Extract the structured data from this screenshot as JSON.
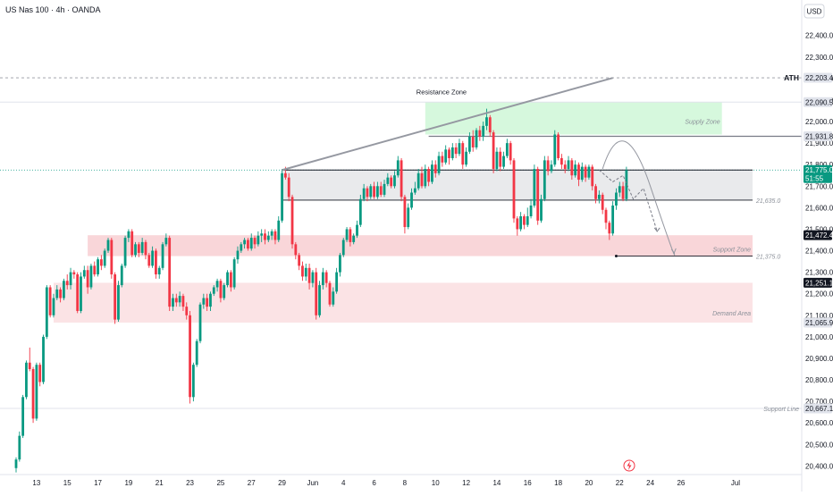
{
  "header": {
    "title": "US Nas 100 · 4h · OANDA",
    "currency": "USD"
  },
  "annotations": {
    "resistance_zone": "Resistance Zone",
    "supply_zone": "Supply Zone",
    "support_zone": "Support Zone",
    "demand_area": "Demand Area",
    "support_line": "Support Line",
    "ath": "ATH",
    "level_21635": "21,635.0",
    "level_21375": "21,375.0"
  },
  "colors": {
    "up": "#089981",
    "down": "#f23645",
    "supply": "#c8f5d2",
    "support_zone": "#f9d6d9",
    "demand": "#fbe3e5",
    "consolidation": "#e9eaec",
    "current_price": "#089981"
  },
  "chart_data": {
    "type": "candlestick",
    "title": "US Nas 100 · 4h · OANDA",
    "ylabel": "USD",
    "ylim": [
      20360,
      22540
    ],
    "y_ticks": [
      "22,400.0",
      "22,300.0",
      "22,200.0",
      "22,100.0",
      "22,000.0",
      "21,900.0",
      "21,800.0",
      "21,700.0",
      "21,600.0",
      "21,500.0",
      "21,400.0",
      "21,300.0",
      "21,200.0",
      "21,100.0",
      "21,000.0",
      "20,900.0",
      "20,800.0",
      "20,700.0",
      "20,600.0",
      "20,500.0",
      "20,400.0"
    ],
    "y_tick_values": [
      22400,
      22300,
      22200,
      22100,
      22000,
      21900,
      21800,
      21700,
      21600,
      21500,
      21400,
      21300,
      21200,
      21100,
      21000,
      20900,
      20800,
      20700,
      20600,
      20500,
      20400
    ],
    "x_ticks": [
      "13",
      "15",
      "17",
      "19",
      "21",
      "23",
      "25",
      "27",
      "29",
      "Jun",
      "4",
      "6",
      "8",
      "10",
      "12",
      "14",
      "16",
      "18",
      "20",
      "22",
      "24",
      "26",
      "Jul"
    ],
    "x_tick_index": [
      6,
      15,
      24,
      33,
      42,
      51,
      60,
      69,
      78,
      87,
      96,
      105,
      114,
      123,
      132,
      141,
      150,
      159,
      168,
      177,
      186,
      195,
      211
    ],
    "price_tags": [
      {
        "label": "22,203.4",
        "value": 22203.4,
        "style": "light"
      },
      {
        "label": "22,090.5",
        "value": 22090.5,
        "style": "light"
      },
      {
        "label": "21,931.8",
        "value": 21931.8,
        "style": "light"
      },
      {
        "label": "21,775.0",
        "value": 21775.0,
        "style": "current",
        "sub": "51:55"
      },
      {
        "label": "21,472.4",
        "value": 21472.4,
        "style": "dark"
      },
      {
        "label": "21,251.1",
        "value": 21251.1,
        "style": "dark"
      },
      {
        "label": "21,065.9",
        "value": 21065.9,
        "style": "light"
      },
      {
        "label": "20,667.1",
        "value": 20667.1,
        "style": "light"
      }
    ],
    "zones": {
      "supply": [
        21940,
        22090
      ],
      "consolidation": [
        21635,
        21775
      ],
      "support": [
        21375,
        21472
      ],
      "demand": [
        21066,
        21251
      ]
    },
    "levels": {
      "ath": 22203.4,
      "resistance_top": 22090.5,
      "high_931": 21931.8,
      "current": 21775.0,
      "l21635": 21635.0,
      "l21375": 21375.0,
      "support_line": 20667.1
    },
    "trendline": {
      "from": [
        78,
        21775
      ],
      "to": [
        175,
        22203
      ]
    },
    "projection": [
      [
        171,
        21775
      ],
      [
        175,
        21720
      ],
      [
        178,
        21750
      ],
      [
        181,
        21640
      ],
      [
        184,
        21690
      ],
      [
        188,
        21490
      ]
    ],
    "projection_arc": [
      [
        172,
        21780
      ],
      [
        178,
        21930
      ],
      [
        186,
        21700
      ],
      [
        193,
        21390
      ]
    ],
    "candles": [
      [
        20390,
        20430,
        20370,
        20440
      ],
      [
        20430,
        20540,
        20420,
        20560
      ],
      [
        20540,
        20720,
        20530,
        20730
      ],
      [
        20720,
        20880,
        20710,
        20890
      ],
      [
        20880,
        20850,
        20840,
        20950
      ],
      [
        20850,
        20620,
        20600,
        20860
      ],
      [
        20620,
        20870,
        20610,
        20880
      ],
      [
        20870,
        20790,
        20770,
        20880
      ],
      [
        20790,
        21000,
        20780,
        21010
      ],
      [
        21000,
        21230,
        20990,
        21240
      ],
      [
        21230,
        21100,
        21090,
        21240
      ],
      [
        21100,
        21180,
        21090,
        21200
      ],
      [
        21180,
        21220,
        21170,
        21240
      ],
      [
        21220,
        21180,
        21160,
        21230
      ],
      [
        21180,
        21260,
        21170,
        21270
      ],
      [
        21260,
        21240,
        21220,
        21290
      ],
      [
        21240,
        21300,
        21220,
        21320
      ],
      [
        21300,
        21290,
        21270,
        21310
      ],
      [
        21290,
        21120,
        21110,
        21300
      ],
      [
        21120,
        21280,
        21110,
        21300
      ],
      [
        21280,
        21310,
        21270,
        21330
      ],
      [
        21310,
        21230,
        21200,
        21330
      ],
      [
        21230,
        21330,
        21220,
        21340
      ],
      [
        21330,
        21290,
        21280,
        21350
      ],
      [
        21290,
        21360,
        21280,
        21370
      ],
      [
        21360,
        21330,
        21310,
        21380
      ],
      [
        21330,
        21400,
        21320,
        21410
      ],
      [
        21400,
        21450,
        21390,
        21460
      ],
      [
        21450,
        21290,
        21270,
        21460
      ],
      [
        21290,
        21080,
        21060,
        21300
      ],
      [
        21080,
        21240,
        21070,
        21260
      ],
      [
        21240,
        21330,
        21230,
        21340
      ],
      [
        21330,
        21460,
        21320,
        21470
      ],
      [
        21460,
        21490,
        21440,
        21500
      ],
      [
        21490,
        21380,
        21370,
        21500
      ],
      [
        21380,
        21430,
        21370,
        21440
      ],
      [
        21430,
        21390,
        21370,
        21440
      ],
      [
        21390,
        21440,
        21380,
        21460
      ],
      [
        21440,
        21380,
        21360,
        21450
      ],
      [
        21380,
        21330,
        21320,
        21390
      ],
      [
        21330,
        21400,
        21320,
        21420
      ],
      [
        21400,
        21290,
        21270,
        21410
      ],
      [
        21290,
        21320,
        21270,
        21330
      ],
      [
        21320,
        21430,
        21310,
        21440
      ],
      [
        21430,
        21460,
        21420,
        21480
      ],
      [
        21460,
        21140,
        21120,
        21470
      ],
      [
        21140,
        21180,
        21120,
        21200
      ],
      [
        21180,
        21160,
        21140,
        21200
      ],
      [
        21160,
        21190,
        21140,
        21210
      ],
      [
        21190,
        21140,
        21120,
        21200
      ],
      [
        21140,
        21100,
        21080,
        21160
      ],
      [
        21100,
        20720,
        20690,
        21120
      ],
      [
        20720,
        20870,
        20700,
        20880
      ],
      [
        20870,
        20980,
        20860,
        20990
      ],
      [
        20980,
        21150,
        20970,
        21160
      ],
      [
        21150,
        21180,
        21130,
        21200
      ],
      [
        21180,
        21140,
        21120,
        21200
      ],
      [
        21140,
        21200,
        21120,
        21210
      ],
      [
        21200,
        21230,
        21190,
        21240
      ],
      [
        21230,
        21260,
        21210,
        21270
      ],
      [
        21260,
        21180,
        21160,
        21270
      ],
      [
        21180,
        21240,
        21170,
        21250
      ],
      [
        21240,
        21300,
        21230,
        21310
      ],
      [
        21300,
        21230,
        21210,
        21310
      ],
      [
        21230,
        21360,
        21220,
        21370
      ],
      [
        21360,
        21400,
        21340,
        21420
      ],
      [
        21400,
        21430,
        21390,
        21440
      ],
      [
        21430,
        21450,
        21410,
        21460
      ],
      [
        21450,
        21410,
        21400,
        21460
      ],
      [
        21410,
        21460,
        21400,
        21480
      ],
      [
        21460,
        21430,
        21410,
        21470
      ],
      [
        21430,
        21470,
        21420,
        21490
      ],
      [
        21470,
        21480,
        21440,
        21500
      ],
      [
        21480,
        21450,
        21430,
        21500
      ],
      [
        21450,
        21470,
        21440,
        21490
      ],
      [
        21470,
        21490,
        21450,
        21500
      ],
      [
        21490,
        21450,
        21430,
        21500
      ],
      [
        21450,
        21540,
        21440,
        21560
      ],
      [
        21540,
        21760,
        21530,
        21780
      ],
      [
        21760,
        21740,
        21730,
        21790
      ],
      [
        21740,
        21650,
        21630,
        21760
      ],
      [
        21650,
        21430,
        21410,
        21660
      ],
      [
        21430,
        21380,
        21360,
        21440
      ],
      [
        21380,
        21330,
        21310,
        21390
      ],
      [
        21330,
        21280,
        21260,
        21350
      ],
      [
        21280,
        21320,
        21260,
        21340
      ],
      [
        21320,
        21250,
        21220,
        21340
      ],
      [
        21250,
        21300,
        21230,
        21310
      ],
      [
        21300,
        21100,
        21080,
        21320
      ],
      [
        21100,
        21240,
        21090,
        21260
      ],
      [
        21240,
        21300,
        21220,
        21320
      ],
      [
        21300,
        21250,
        21230,
        21310
      ],
      [
        21250,
        21150,
        21140,
        21260
      ],
      [
        21150,
        21210,
        21140,
        21230
      ],
      [
        21210,
        21300,
        21200,
        21320
      ],
      [
        21300,
        21380,
        21280,
        21390
      ],
      [
        21380,
        21450,
        21370,
        21460
      ],
      [
        21450,
        21500,
        21440,
        21510
      ],
      [
        21500,
        21440,
        21420,
        21510
      ],
      [
        21440,
        21470,
        21430,
        21480
      ],
      [
        21470,
        21520,
        21460,
        21540
      ],
      [
        21520,
        21640,
        21510,
        21660
      ],
      [
        21640,
        21690,
        21630,
        21710
      ],
      [
        21690,
        21650,
        21630,
        21700
      ],
      [
        21650,
        21700,
        21640,
        21710
      ],
      [
        21700,
        21650,
        21640,
        21720
      ],
      [
        21650,
        21700,
        21640,
        21720
      ],
      [
        21700,
        21660,
        21650,
        21720
      ],
      [
        21660,
        21710,
        21650,
        21730
      ],
      [
        21710,
        21740,
        21700,
        21760
      ],
      [
        21740,
        21700,
        21690,
        21750
      ],
      [
        21700,
        21750,
        21690,
        21770
      ],
      [
        21750,
        21820,
        21740,
        21840
      ],
      [
        21820,
        21650,
        21630,
        21830
      ],
      [
        21650,
        21510,
        21480,
        21660
      ],
      [
        21510,
        21600,
        21500,
        21620
      ],
      [
        21600,
        21670,
        21590,
        21690
      ],
      [
        21670,
        21690,
        21660,
        21720
      ],
      [
        21690,
        21760,
        21680,
        21780
      ],
      [
        21760,
        21700,
        21690,
        21790
      ],
      [
        21700,
        21780,
        21690,
        21800
      ],
      [
        21780,
        21720,
        21700,
        21790
      ],
      [
        21720,
        21800,
        21710,
        21820
      ],
      [
        21800,
        21760,
        21740,
        21820
      ],
      [
        21760,
        21840,
        21750,
        21860
      ],
      [
        21840,
        21810,
        21790,
        21860
      ],
      [
        21810,
        21870,
        21800,
        21890
      ],
      [
        21870,
        21830,
        21800,
        21880
      ],
      [
        21830,
        21880,
        21820,
        21900
      ],
      [
        21880,
        21850,
        21830,
        21900
      ],
      [
        21850,
        21900,
        21840,
        21920
      ],
      [
        21900,
        21800,
        21780,
        21910
      ],
      [
        21800,
        21860,
        21790,
        21880
      ],
      [
        21860,
        21930,
        21850,
        21950
      ],
      [
        21930,
        21880,
        21860,
        21960
      ],
      [
        21880,
        21960,
        21870,
        21970
      ],
      [
        21960,
        21930,
        21910,
        21980
      ],
      [
        21930,
        21980,
        21910,
        22000
      ],
      [
        21980,
        22020,
        21960,
        22060
      ],
      [
        22020,
        21950,
        21930,
        22030
      ],
      [
        21950,
        21780,
        21760,
        21960
      ],
      [
        21780,
        21860,
        21770,
        21880
      ],
      [
        21860,
        21790,
        21770,
        21880
      ],
      [
        21790,
        21840,
        21780,
        21860
      ],
      [
        21840,
        21900,
        21830,
        21920
      ],
      [
        21900,
        21820,
        21800,
        21910
      ],
      [
        21820,
        21550,
        21530,
        21830
      ],
      [
        21550,
        21500,
        21470,
        21560
      ],
      [
        21500,
        21560,
        21490,
        21580
      ],
      [
        21560,
        21520,
        21500,
        21570
      ],
      [
        21520,
        21560,
        21510,
        21600
      ],
      [
        21560,
        21610,
        21550,
        21640
      ],
      [
        21610,
        21780,
        21600,
        21800
      ],
      [
        21780,
        21540,
        21520,
        21790
      ],
      [
        21540,
        21640,
        21530,
        21660
      ],
      [
        21640,
        21820,
        21630,
        21840
      ],
      [
        21820,
        21770,
        21750,
        21840
      ],
      [
        21770,
        21800,
        21760,
        21820
      ],
      [
        21800,
        21940,
        21790,
        21960
      ],
      [
        21940,
        21830,
        21820,
        21950
      ],
      [
        21830,
        21800,
        21780,
        21850
      ],
      [
        21800,
        21780,
        21760,
        21820
      ],
      [
        21780,
        21820,
        21770,
        21840
      ],
      [
        21820,
        21750,
        21730,
        21830
      ],
      [
        21750,
        21800,
        21740,
        21820
      ],
      [
        21800,
        21730,
        21700,
        21810
      ],
      [
        21730,
        21790,
        21720,
        21810
      ],
      [
        21790,
        21740,
        21720,
        21800
      ],
      [
        21740,
        21790,
        21730,
        21800
      ],
      [
        21790,
        21700,
        21680,
        21800
      ],
      [
        21700,
        21640,
        21620,
        21710
      ],
      [
        21640,
        21660,
        21620,
        21680
      ],
      [
        21660,
        21590,
        21570,
        21670
      ],
      [
        21590,
        21530,
        21500,
        21600
      ],
      [
        21530,
        21480,
        21450,
        21540
      ],
      [
        21480,
        21610,
        21470,
        21630
      ],
      [
        21610,
        21670,
        21590,
        21690
      ],
      [
        21670,
        21700,
        21650,
        21720
      ],
      [
        21700,
        21640,
        21630,
        21720
      ],
      [
        21640,
        21775,
        21630,
        21790
      ]
    ]
  }
}
